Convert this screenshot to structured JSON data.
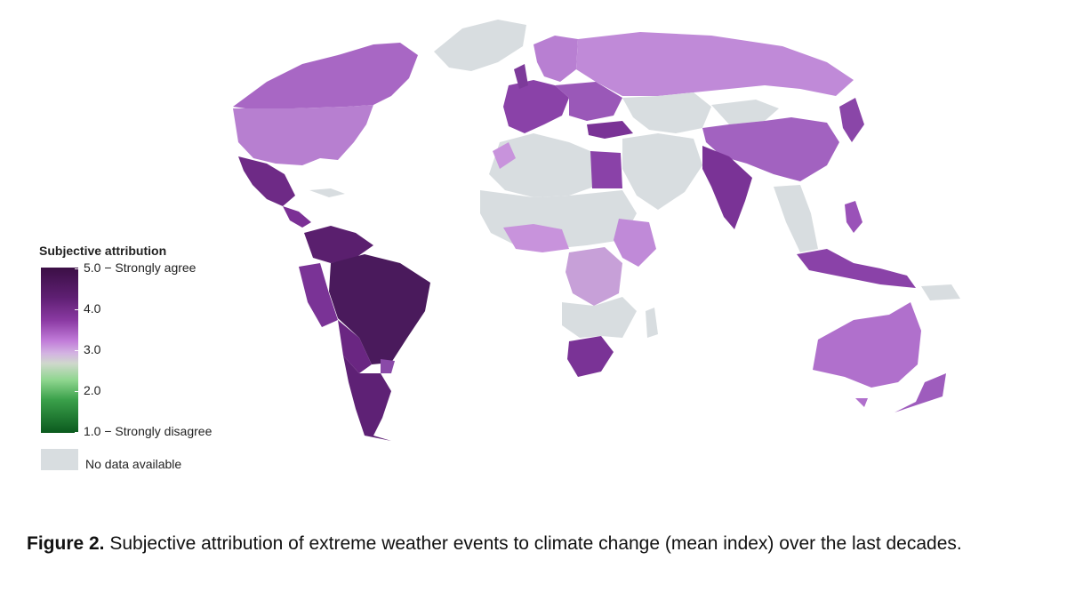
{
  "legend": {
    "title": "Subjective attribution",
    "ticks": [
      {
        "value": 5.0,
        "label": "5.0 − Strongly agree"
      },
      {
        "value": 4.0,
        "label": "4.0"
      },
      {
        "value": 3.0,
        "label": "3.0"
      },
      {
        "value": 2.0,
        "label": "2.0"
      },
      {
        "value": 1.0,
        "label": "1.0 − Strongly disagree"
      }
    ],
    "no_data_label": "No data available"
  },
  "colors": {
    "no_data": "#d8dde0",
    "scale_high": "#3b0f45",
    "scale_mid": "#cfd8cc",
    "scale_low": "#0b5a1e"
  },
  "caption": {
    "label": "Figure 2.",
    "text": " Subjective attribution of extreme weather events to climate change (mean index) over the last decades."
  }
}
